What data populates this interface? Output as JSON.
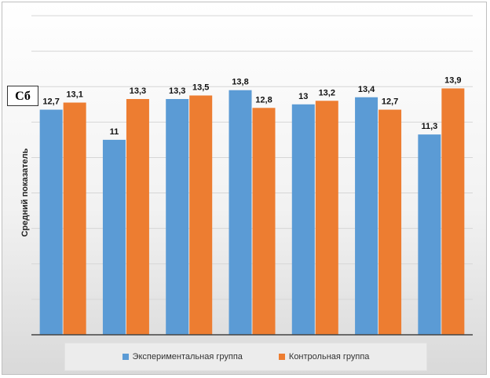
{
  "badge": "Сб",
  "chart_data": {
    "type": "bar",
    "title": "",
    "xlabel": "",
    "ylabel": "Средний показатель",
    "categories": [
      "",
      "",
      "",
      "",
      "",
      "",
      ""
    ],
    "series": [
      {
        "name": "Экспериментальная группа",
        "color": "#5b9bd5",
        "values": [
          12.7,
          11,
          13.3,
          13.8,
          13,
          13.4,
          11.3
        ],
        "labels": [
          "12,7",
          "11",
          "13,3",
          "13,8",
          "13",
          "13,4",
          "11,3"
        ]
      },
      {
        "name": "Контрольная группа",
        "color": "#ed7d31",
        "values": [
          13.1,
          13.3,
          13.5,
          12.8,
          13.2,
          12.7,
          13.9
        ],
        "labels": [
          "13,1",
          "13,3",
          "13,5",
          "12,8",
          "13,2",
          "12,7",
          "13,9"
        ]
      }
    ],
    "ylim": [
      0,
      18
    ],
    "grid": true,
    "legend": "bottom"
  }
}
